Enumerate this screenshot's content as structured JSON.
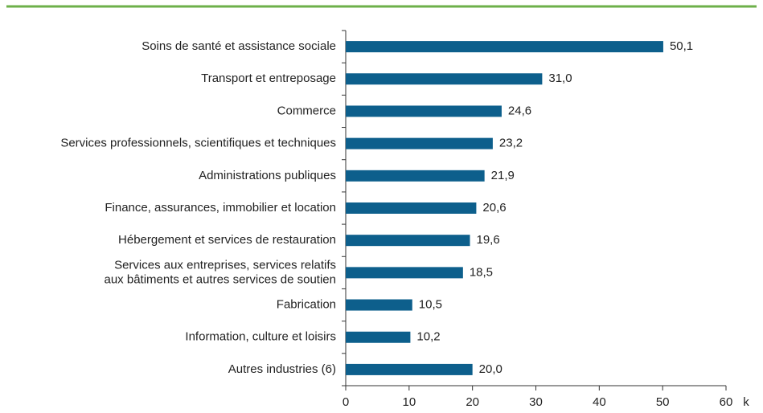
{
  "chart_data": {
    "type": "bar",
    "orientation": "horizontal",
    "categories": [
      "Soins de santé et assistance sociale",
      "Transport et entreposage",
      "Commerce",
      "Services professionnels, scientifiques et techniques",
      "Administrations publiques",
      "Finance, assurances, immobilier et location",
      "Hébergement et services de restauration",
      "Services aux entreprises, services relatifs\naux bâtiments et autres services de soutien",
      "Fabrication",
      "Information, culture et loisirs",
      "Autres industries (6)"
    ],
    "values": [
      50.1,
      31.0,
      24.6,
      23.2,
      21.9,
      20.6,
      19.6,
      18.5,
      10.5,
      10.2,
      20.0
    ],
    "value_labels": [
      "50,1",
      "31,0",
      "24,6",
      "23,2",
      "21,9",
      "20,6",
      "19,6",
      "18,5",
      "10,5",
      "10,2",
      "20,0"
    ],
    "color": "#0d5f8c",
    "xlim": [
      0,
      60
    ],
    "xticks": [
      0,
      10,
      20,
      30,
      40,
      50,
      60
    ],
    "x_label": "k"
  }
}
